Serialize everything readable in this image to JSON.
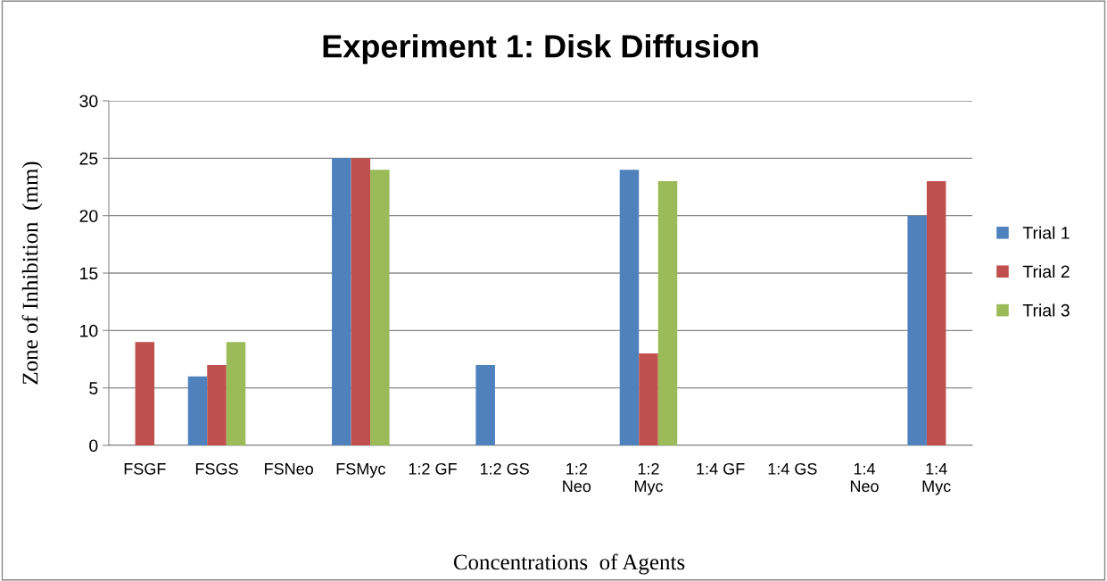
{
  "chart_data": {
    "type": "bar",
    "title": "Experiment 1: Disk Diffusion",
    "xlabel": "Concentrations  of Agents",
    "ylabel": "Zone of Inhibition  (mm)",
    "categories": [
      "FSGF",
      "FSGS",
      "FSNeo",
      "FSMyc",
      "1:2 GF",
      "1:2 GS",
      "1:2\nNeo",
      "1:2\nMyc",
      "1:4 GF",
      "1:4 GS",
      "1:4\nNeo",
      "1:4\nMyc"
    ],
    "series": [
      {
        "name": "Trial 1",
        "color": "#4f81bd",
        "values": [
          0,
          6,
          0,
          25,
          0,
          7,
          0,
          24,
          0,
          0,
          0,
          20
        ]
      },
      {
        "name": "Trial 2",
        "color": "#c0504d",
        "values": [
          9,
          7,
          0,
          25,
          0,
          0,
          0,
          8,
          0,
          0,
          0,
          23
        ]
      },
      {
        "name": "Trial 3",
        "color": "#9bbb59",
        "values": [
          0,
          9,
          0,
          24,
          0,
          0,
          0,
          23,
          0,
          0,
          0,
          0
        ]
      }
    ],
    "ylim": [
      0,
      30
    ],
    "yticks": [
      0,
      5,
      10,
      15,
      20,
      25,
      30
    ],
    "grid": "y",
    "legend": "right"
  }
}
